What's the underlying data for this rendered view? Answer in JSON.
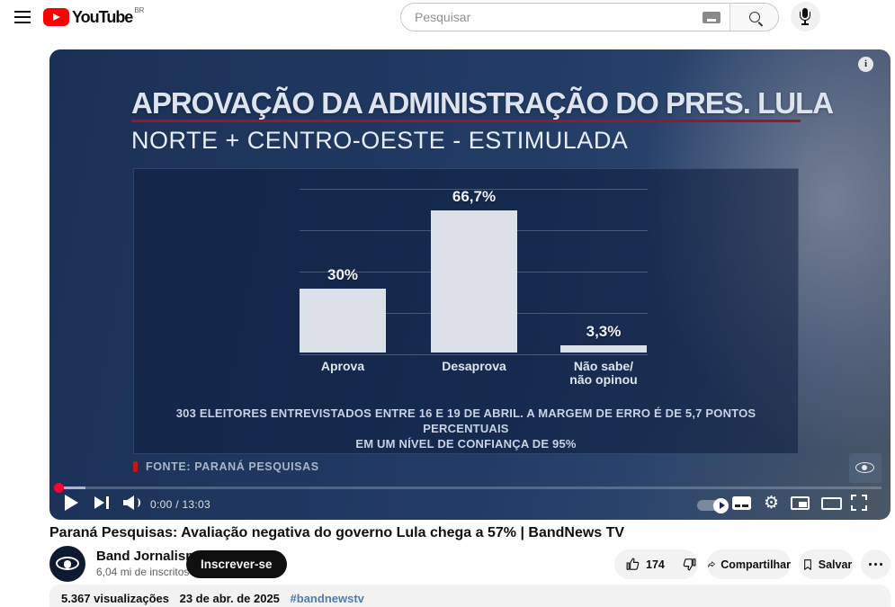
{
  "header": {
    "logo": {
      "brand": "YouTube",
      "region": "BR"
    },
    "search": {
      "placeholder": "Pesquisar"
    }
  },
  "player": {
    "time_display": "0:00 / 13:03"
  },
  "chart_data": {
    "type": "bar",
    "title": "APROVAÇÃO DA ADMINISTRAÇÃO DO PRES. LULA",
    "subtitle": "NORTE + CENTRO-OESTE - ESTIMULADA",
    "categories": [
      "Aprova",
      "Desaprova",
      "Não sabe/não opinou"
    ],
    "category_lines": [
      [
        "Aprova",
        ""
      ],
      [
        "Desaprova",
        ""
      ],
      [
        "Não sabe/",
        "não opinou"
      ]
    ],
    "values": [
      30,
      66.7,
      3.3
    ],
    "value_labels": [
      "30%",
      "66,7%",
      "3,3%"
    ],
    "ylim": [
      0,
      87
    ],
    "grid": true,
    "bar_color": "#dce0e9",
    "note_line1": "303 ELEITORES ENTREVISTADOS ENTRE 16 E 19 DE ABRIL. A MARGEM DE ERRO É DE 5,7 PONTOS PERCENTUAIS",
    "note_line2": "EM UM NÍVEL DE CONFIANÇA DE 95%",
    "source": "FONTE: PARANÁ PESQUISAS"
  },
  "video": {
    "title": "Paraná Pesquisas: Avaliação negativa do governo Lula chega a 57% | BandNews TV",
    "channel": {
      "name": "Band Jornalismo",
      "subscribers": "6,04 mi de inscritos"
    },
    "subscribe_label": "Inscrever-se",
    "actions": {
      "like_count": "174",
      "share_label": "Compartilhar",
      "save_label": "Salvar"
    },
    "description": {
      "views": "5.367 visualizações",
      "date": "23 de abr. de 2025",
      "hashtag": "#bandnewstv"
    }
  }
}
